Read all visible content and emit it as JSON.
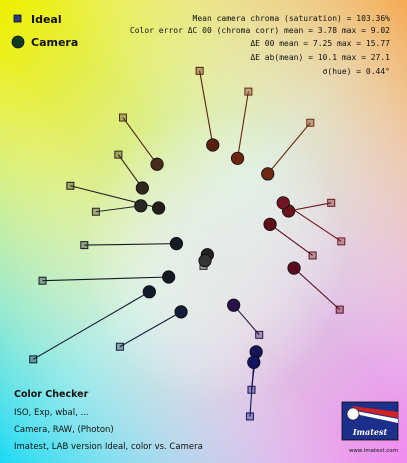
{
  "chart_data": {
    "type": "scatter",
    "title": "",
    "xlabel": "",
    "ylabel": "",
    "xlim": [
      -2.5,
      2.5
    ],
    "ylim": [
      -3.0,
      3.0
    ],
    "grid": false,
    "legend_position": "top-left",
    "legend": [
      {
        "label": "Ideal",
        "shape": "square",
        "color": "#2b3c8a"
      },
      {
        "label": "Camera",
        "shape": "circle",
        "color": "#0e3b20"
      }
    ],
    "stats": [
      "Mean camera chroma (saturation) = 103.36%",
      "Color error ΔC 00 (chroma corr) mean = 3.78  max = 9.02",
      "ΔE 00 mean = 7.25  max = 15.77",
      "ΔE ab(mean) = 10.1  max = 27.1",
      "σ(hue) = 0.44°"
    ],
    "caption": {
      "title": "Color Checker",
      "lines": [
        "ISO, Exp, wbal, ...",
        "Camera, RAW, (Photon)",
        "Imatest, LAB version Ideal, color vs. Camera"
      ]
    },
    "logo": {
      "text": "Imatest",
      "url": "www.imatest.com"
    },
    "series": [
      {
        "name": "Ideal",
        "marker": "square",
        "points": [
          [
            -0.05,
            2.18
          ],
          [
            0.58,
            1.9
          ],
          [
            1.38,
            1.48
          ],
          [
            -1.04,
            1.55
          ],
          [
            -1.1,
            1.05
          ],
          [
            -1.72,
            0.63
          ],
          [
            -1.39,
            0.28
          ],
          [
            -1.54,
            -0.17
          ],
          [
            -2.08,
            -0.65
          ],
          [
            -2.2,
            -1.71
          ],
          [
            1.65,
            0.4
          ],
          [
            1.78,
            -0.12
          ],
          [
            1.41,
            -0.31
          ],
          [
            1.76,
            -1.04
          ],
          [
            0.72,
            -1.38
          ],
          [
            -1.08,
            -1.54
          ],
          [
            0.62,
            -2.12
          ],
          [
            0.6,
            -2.48
          ],
          [
            0.0,
            -0.45
          ],
          [
            0.05,
            -0.3
          ]
        ]
      },
      {
        "name": "Camera",
        "marker": "circle",
        "points": [
          [
            0.12,
            1.18
          ],
          [
            0.44,
            1.0
          ],
          [
            0.83,
            0.79
          ],
          [
            -0.6,
            0.92
          ],
          [
            -0.79,
            0.6
          ],
          [
            -0.58,
            0.33
          ],
          [
            -0.81,
            0.36
          ],
          [
            -0.35,
            -0.15
          ],
          [
            -0.45,
            -0.6
          ],
          [
            -0.7,
            -0.8
          ],
          [
            1.1,
            0.29
          ],
          [
            1.03,
            0.4
          ],
          [
            0.86,
            0.11
          ],
          [
            1.17,
            -0.48
          ],
          [
            0.39,
            -0.98
          ],
          [
            -0.29,
            -1.07
          ],
          [
            0.68,
            -1.61
          ],
          [
            0.65,
            -1.75
          ],
          [
            0.05,
            -0.3
          ],
          [
            0.02,
            -0.38
          ]
        ]
      }
    ],
    "pair_colors": [
      "#5a1e10",
      "#6b2410",
      "#6e2812",
      "#4a2a1c",
      "#2f261c",
      "#231d1c",
      "#2a2824",
      "#161c23",
      "#131a22",
      "#101c2e",
      "#6a1419",
      "#721523",
      "#5f0f1c",
      "#5c0c20",
      "#27124a",
      "#141d38",
      "#15155a",
      "#121463",
      "#222222",
      "#333333"
    ]
  }
}
